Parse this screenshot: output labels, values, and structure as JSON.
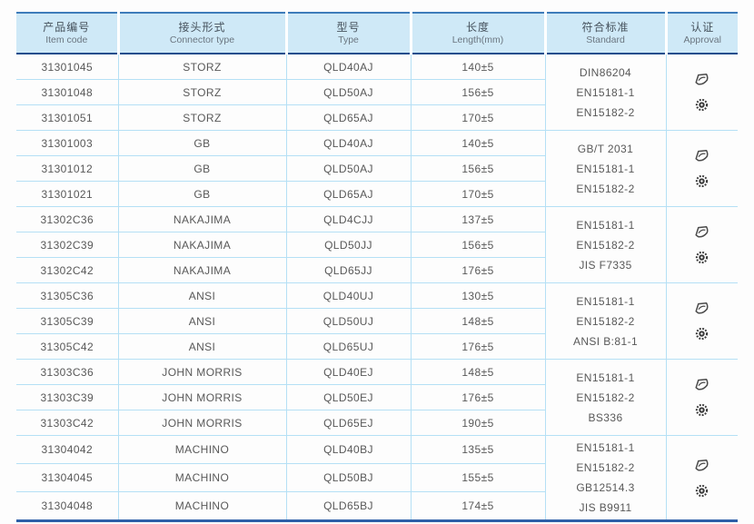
{
  "table": {
    "columns": [
      {
        "zh": "产品编号",
        "en": "Item code"
      },
      {
        "zh": "接头形式",
        "en": "Connector type"
      },
      {
        "zh": "型号",
        "en": "Type"
      },
      {
        "zh": "长度",
        "en": "Length(mm)"
      },
      {
        "zh": "符合标准",
        "en": "Standard"
      },
      {
        "zh": "认证",
        "en": "Approval"
      }
    ],
    "groups": [
      {
        "rows": [
          {
            "item_code": "31301045",
            "connector": "STORZ",
            "type": "QLD40AJ",
            "length": "140±5"
          },
          {
            "item_code": "31301048",
            "connector": "STORZ",
            "type": "QLD50AJ",
            "length": "156±5"
          },
          {
            "item_code": "31301051",
            "connector": "STORZ",
            "type": "QLD65AJ",
            "length": "170±5"
          }
        ],
        "standards": [
          "DIN86204",
          "EN15181-1",
          "EN15182-2"
        ],
        "approval_icons": [
          "certification-logo-icon",
          "certification-seal-icon"
        ]
      },
      {
        "rows": [
          {
            "item_code": "31301003",
            "connector": "GB",
            "type": "QLD40AJ",
            "length": "140±5"
          },
          {
            "item_code": "31301012",
            "connector": "GB",
            "type": "QLD50AJ",
            "length": "156±5"
          },
          {
            "item_code": "31301021",
            "connector": "GB",
            "type": "QLD65AJ",
            "length": "170±5"
          }
        ],
        "standards": [
          "GB/T 2031",
          "EN15181-1",
          "EN15182-2"
        ],
        "approval_icons": [
          "certification-logo-icon",
          "certification-seal-icon"
        ]
      },
      {
        "rows": [
          {
            "item_code": "31302C36",
            "connector": "NAKAJIMA",
            "type": "QLD4CJJ",
            "length": "137±5"
          },
          {
            "item_code": "31302C39",
            "connector": "NAKAJIMA",
            "type": "QLD50JJ",
            "length": "156±5"
          },
          {
            "item_code": "31302C42",
            "connector": "NAKAJIMA",
            "type": "QLD65JJ",
            "length": "176±5"
          }
        ],
        "standards": [
          "EN15181-1",
          "EN15182-2",
          "JIS F7335"
        ],
        "approval_icons": [
          "certification-logo-icon",
          "certification-seal-icon"
        ]
      },
      {
        "rows": [
          {
            "item_code": "31305C36",
            "connector": "ANSI",
            "type": "QLD40UJ",
            "length": "130±5"
          },
          {
            "item_code": "31305C39",
            "connector": "ANSI",
            "type": "QLD50UJ",
            "length": "148±5"
          },
          {
            "item_code": "31305C42",
            "connector": "ANSI",
            "type": "QLD65UJ",
            "length": "176±5"
          }
        ],
        "standards": [
          "EN15181-1",
          "EN15182-2",
          "ANSI B:81-1"
        ],
        "approval_icons": [
          "certification-logo-icon",
          "certification-seal-icon"
        ]
      },
      {
        "rows": [
          {
            "item_code": "31303C36",
            "connector": "JOHN MORRIS",
            "type": "QLD40EJ",
            "length": "148±5"
          },
          {
            "item_code": "31303C39",
            "connector": "JOHN MORRIS",
            "type": "QLD50EJ",
            "length": "176±5"
          },
          {
            "item_code": "31303C42",
            "connector": "JOHN MORRIS",
            "type": "QLD65EJ",
            "length": "190±5"
          }
        ],
        "standards": [
          "EN15181-1",
          "EN15182-2",
          "BS336"
        ],
        "approval_icons": [
          "certification-logo-icon",
          "certification-seal-icon"
        ]
      },
      {
        "rows": [
          {
            "item_code": "31304042",
            "connector": "MACHINO",
            "type": "QLD40BJ",
            "length": "135±5"
          },
          {
            "item_code": "31304045",
            "connector": "MACHINO",
            "type": "QLD50BJ",
            "length": "155±5"
          },
          {
            "item_code": "31304048",
            "connector": "MACHINO",
            "type": "QLD65BJ",
            "length": "174±5"
          }
        ],
        "standards": [
          "EN15181-1",
          "EN15182-2",
          "GB12514.3",
          "JIS B9911"
        ],
        "approval_icons": [
          "certification-logo-icon",
          "certification-seal-icon"
        ]
      }
    ]
  },
  "colors": {
    "header_bg": "#cfe9f7",
    "header_border_top": "#3e7cba",
    "header_border_bottom": "#1f4e8c",
    "grid_line": "#b5e0f5",
    "table_bottom_border": "#2e5fa8",
    "body_text": "#585858",
    "header_text_zh": "#46525d",
    "header_text_en": "#6b7680"
  }
}
